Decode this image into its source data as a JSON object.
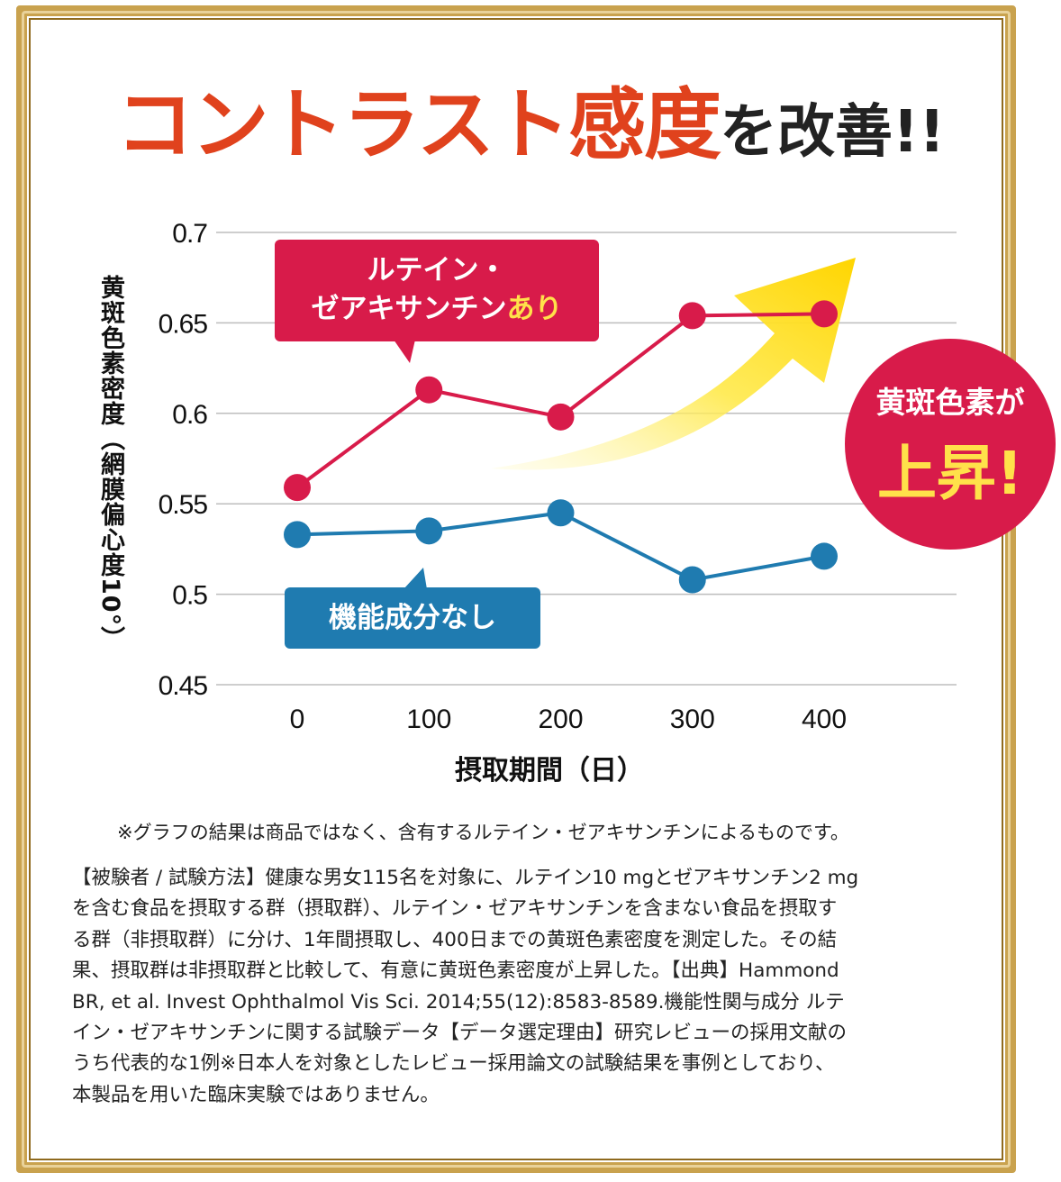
{
  "headline": {
    "part1": "コントラスト感度",
    "part2": "を改善!!"
  },
  "chart_data": {
    "type": "line",
    "ylabel": "黄斑色素密度（網膜偏心度10°）",
    "xlabel": "摂取期間（日）",
    "x": [
      0,
      100,
      200,
      300,
      400
    ],
    "xticks": [
      "0",
      "100",
      "200",
      "300",
      "400"
    ],
    "yticks": [
      "0.7",
      "0.65",
      "0.6",
      "0.55",
      "0.5",
      "0.45"
    ],
    "ylim": [
      0.45,
      0.7
    ],
    "grid": true,
    "series": [
      {
        "name": "ルテイン・ゼアキサンチンあり",
        "color": "#d81b4a",
        "values": [
          0.559,
          0.613,
          0.598,
          0.654,
          0.655
        ]
      },
      {
        "name": "機能成分なし",
        "color": "#1f7bb0",
        "values": [
          0.533,
          0.535,
          0.545,
          0.508,
          0.521
        ]
      }
    ]
  },
  "callouts": {
    "red_line1": "ルテイン・",
    "red_line2": "ゼアキサンチン",
    "red_line2_highlight": "あり",
    "blue": "機能成分なし",
    "badge_line1": "黄斑色素が",
    "badge_line2": "上昇!"
  },
  "note": "※グラフの結果は商品ではなく、含有するルテイン・ゼアキサンチンによるものです。",
  "method": "【被験者 / 試験方法】健康な男女115名を対象に、ルテイン10 mgとゼアキサンチン2 mg\nを含む食品を摂取する群（摂取群）、ルテイン・ゼアキサンチンを含まない食品を摂取す\nる群（非摂取群）に分け、1年間摂取し、400日までの黄斑色素密度を測定した。その結\n果、摂取群は非摂取群と比較して、有意に黄斑色素密度が上昇した。【出典】Hammond\nBR, et al. Invest Ophthalmol Vis Sci. 2014;55(12):8583-8589.機能性関与成分 ルテ\nイン・ゼアキサンチンに関する試験データ【データ選定理由】研究レビューの採用文献の\nうち代表的な1例※日本人を対象としたレビュー採用論文の試験結果を事例としており、\n本製品を用いた臨床実験ではありません。"
}
